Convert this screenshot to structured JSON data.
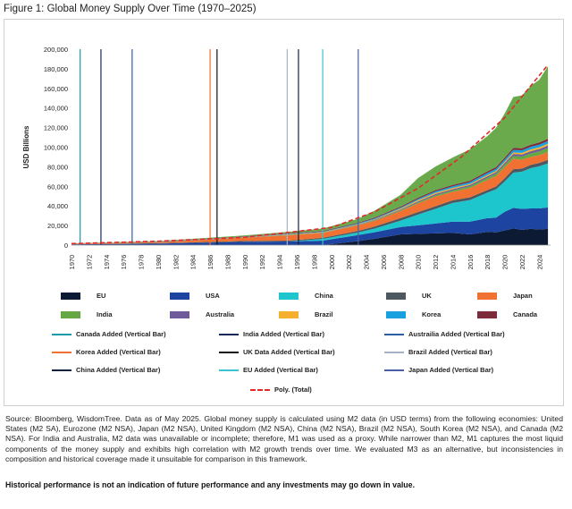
{
  "figure_title": "Figure 1: Global Money Supply Over Time (1970–2025)",
  "source_note": "Source: Bloomberg, WisdomTree. Data as of May 2025. Global money supply is calculated using M2 data (in USD terms) from the following economies: United States (M2 SA), Eurozone (M2 NSA), Japan (M2 NSA), United Kingdom (M2 NSA), China (M2 NSA), Brazil (M2 NSA), South Korea (M2 NSA), and Canada (M2 NSA). For India and Australia, M2 data was unavailable or incomplete; therefore, M1 was used as a proxy. While narrower than M2, M1 captures the most liquid components of the money supply and exhibits high correlation with M2 growth trends over time. We evaluated M3 as an alternative, but inconsistencies in composition and historical coverage made it unsuitable for comparison in this framework.",
  "disclaimer": "Historical performance is not an indication of future performance and any investments may go down in value.",
  "chart_data": {
    "type": "area",
    "stacked": true,
    "ylabel": "USD Billions",
    "xlabel": "",
    "ylim": [
      0,
      200000
    ],
    "xlim": [
      1970,
      2025.3
    ],
    "y_ticks": [
      "0",
      "20,000",
      "40,000",
      "60,000",
      "80,000",
      "100,000",
      "120,000",
      "140,000",
      "160,000",
      "180,000",
      "200,000"
    ],
    "y_tick_values": [
      0,
      20000,
      40000,
      60000,
      80000,
      100000,
      120000,
      140000,
      160000,
      180000,
      200000
    ],
    "x_ticks": [
      "1970",
      "1972",
      "1974",
      "1976",
      "1978",
      "1980",
      "1982",
      "1984",
      "1986",
      "1988",
      "1990",
      "1992",
      "1994",
      "1996",
      "1998",
      "2000",
      "2002",
      "2004",
      "2006",
      "2008",
      "2010",
      "2012",
      "2014",
      "2016",
      "2018",
      "2020",
      "2022",
      "2024"
    ],
    "x_tick_values": [
      1970,
      1972,
      1974,
      1976,
      1978,
      1980,
      1982,
      1984,
      1986,
      1988,
      1990,
      1992,
      1994,
      1996,
      1998,
      2000,
      2002,
      2004,
      2006,
      2008,
      2010,
      2012,
      2014,
      2016,
      2018,
      2020,
      2022,
      2024
    ],
    "grid": false,
    "x": [
      1970,
      1980,
      1990,
      1995,
      1999,
      2003,
      2005,
      2008,
      2010,
      2012,
      2014,
      2016,
      2018,
      2019,
      2020,
      2021,
      2022,
      2023,
      2024,
      2025
    ],
    "series": [
      {
        "name": "EU",
        "color": "#0d1a33",
        "values": [
          0,
          0,
          0,
          0,
          0,
          4000,
          6500,
          11000,
          11500,
          12000,
          12500,
          11000,
          13500,
          13000,
          15000,
          17000,
          15500,
          16500,
          16000,
          16500
        ]
      },
      {
        "name": "USA",
        "color": "#1d44a0",
        "values": [
          700,
          1500,
          3300,
          3600,
          4600,
          6200,
          6600,
          7500,
          8700,
          10000,
          11500,
          13000,
          14000,
          15000,
          19000,
          21000,
          21500,
          21000,
          21500,
          22000
        ]
      },
      {
        "name": "China",
        "color": "#1cc6cc",
        "values": [
          0,
          0,
          0,
          0,
          1700,
          2600,
          3800,
          6500,
          11000,
          15000,
          19000,
          22000,
          26000,
          29000,
          31000,
          36000,
          38000,
          41000,
          43000,
          45000
        ]
      },
      {
        "name": "UK",
        "color": "#4e5861",
        "values": [
          150,
          400,
          900,
          1000,
          1100,
          1600,
          2000,
          2600,
          2500,
          2600,
          2800,
          2700,
          2700,
          2800,
          3200,
          3500,
          3100,
          3300,
          3400,
          3500
        ]
      },
      {
        "name": "Japan",
        "color": "#f07132",
        "values": [
          500,
          1000,
          3500,
          5500,
          5000,
          5700,
          5900,
          7200,
          8900,
          10000,
          8500,
          9500,
          10300,
          10500,
          11200,
          10500,
          9000,
          8200,
          8000,
          8000
        ]
      },
      {
        "name": "India",
        "color": "#64a743",
        "values": [
          50,
          100,
          150,
          250,
          250,
          400,
          500,
          800,
          1000,
          1200,
          1500,
          1800,
          2200,
          2500,
          2600,
          3000,
          3300,
          3600,
          3900,
          4200
        ]
      },
      {
        "name": "Australia",
        "color": "#6f5a9a",
        "values": [
          50,
          150,
          250,
          300,
          300,
          400,
          600,
          800,
          1000,
          1200,
          1300,
          1400,
          1500,
          1600,
          1800,
          2000,
          2100,
          2200,
          2300,
          2400
        ]
      },
      {
        "name": "Brazil",
        "color": "#f4b02e",
        "values": [
          0,
          50,
          100,
          300,
          300,
          300,
          500,
          1000,
          1300,
          1300,
          1200,
          1000,
          1300,
          1300,
          1200,
          1500,
          1700,
          1900,
          1800,
          1900
        ]
      },
      {
        "name": "Korea",
        "color": "#17a1e0",
        "values": [
          50,
          100,
          300,
          500,
          500,
          700,
          900,
          1000,
          1300,
          1500,
          1700,
          1900,
          2100,
          2200,
          2300,
          2600,
          2600,
          2600,
          2700,
          2800
        ]
      },
      {
        "name": "Canada",
        "color": "#7d2a3a",
        "values": [
          100,
          200,
          400,
          500,
          600,
          700,
          900,
          1000,
          1200,
          1300,
          1400,
          1400,
          1600,
          1700,
          1900,
          2100,
          2100,
          2100,
          2200,
          2300
        ]
      }
    ],
    "rest_of_world": {
      "color": "#6aaa4c",
      "values": [
        200,
        600,
        1000,
        1500,
        2500,
        4000,
        7000,
        12000,
        20000,
        24000,
        28000,
        32000,
        36000,
        40000,
        45000,
        52000,
        54000,
        60000,
        64000,
        74000
      ]
    },
    "trendline": {
      "name": "Poly. (Total)",
      "color": "#e02a2a",
      "style": "dashed",
      "points": [
        [
          1970,
          1500
        ],
        [
          1980,
          4000
        ],
        [
          1990,
          8000
        ],
        [
          2000,
          18000
        ],
        [
          2005,
          34000
        ],
        [
          2010,
          58000
        ],
        [
          2015,
          90000
        ],
        [
          2020,
          130000
        ],
        [
          2025,
          184000
        ]
      ]
    },
    "vertical_bars": [
      {
        "name": "Canada Added (Vertical Bar)",
        "x": 1971.0,
        "color": "#1a9aa6"
      },
      {
        "name": "India Added (Vertical Bar)",
        "x": 1973.4,
        "color": "#162a5c"
      },
      {
        "name": "Austrailia Added (Vertical Bar)",
        "x": 1977.0,
        "color": "#2a5fa5"
      },
      {
        "name": "Korea Added (Vertical Bar)",
        "x": 1986.0,
        "color": "#f07132"
      },
      {
        "name": "UK Data Added (Vertical Bar)",
        "x": 1986.8,
        "color": "#111111"
      },
      {
        "name": "Brazil Added (Vertical Bar)",
        "x": 1994.9,
        "color": "#a5b3c4"
      },
      {
        "name": "China Added (Vertical Bar)",
        "x": 1996.2,
        "color": "#10203f"
      },
      {
        "name": "EU Added (Vertical Bar)",
        "x": 1999.0,
        "color": "#3bc3d0"
      },
      {
        "name": "Japan Added (Vertical Bar)",
        "x": 2003.1,
        "color": "#4a5ea8"
      }
    ],
    "legend": {
      "placement": "bottom",
      "area_items": [
        {
          "label": "EU",
          "color": "#0d1a33"
        },
        {
          "label": "USA",
          "color": "#1d44a0"
        },
        {
          "label": "China",
          "color": "#1cc6cc"
        },
        {
          "label": "UK",
          "color": "#4e5861"
        },
        {
          "label": "Japan",
          "color": "#f07132"
        },
        {
          "label": "India",
          "color": "#64a743"
        },
        {
          "label": "Australia",
          "color": "#6f5a9a"
        },
        {
          "label": "Brazil",
          "color": "#f4b02e"
        },
        {
          "label": "Korea",
          "color": "#17a1e0"
        },
        {
          "label": "Canada",
          "color": "#7d2a3a"
        }
      ],
      "line_items": [
        {
          "label": "Canada Added (Vertical Bar)",
          "color": "#1a9aa6"
        },
        {
          "label": "India Added (Vertical Bar)",
          "color": "#162a5c"
        },
        {
          "label": "Austrailia Added (Vertical Bar)",
          "color": "#2a5fa5"
        },
        {
          "label": "Korea Added (Vertical Bar)",
          "color": "#f07132"
        },
        {
          "label": "UK Data Added (Vertical Bar)",
          "color": "#111111"
        },
        {
          "label": "Brazil Added (Vertical Bar)",
          "color": "#a5b3c4"
        },
        {
          "label": "China Added (Vertical Bar)",
          "color": "#10203f"
        },
        {
          "label": "EU Added (Vertical Bar)",
          "color": "#3bc3d0"
        },
        {
          "label": "Japan Added (Vertical Bar)",
          "color": "#4a5ea8"
        }
      ],
      "trend_item": {
        "label": "Poly. (Total)",
        "color": "#e02a2a"
      }
    }
  }
}
